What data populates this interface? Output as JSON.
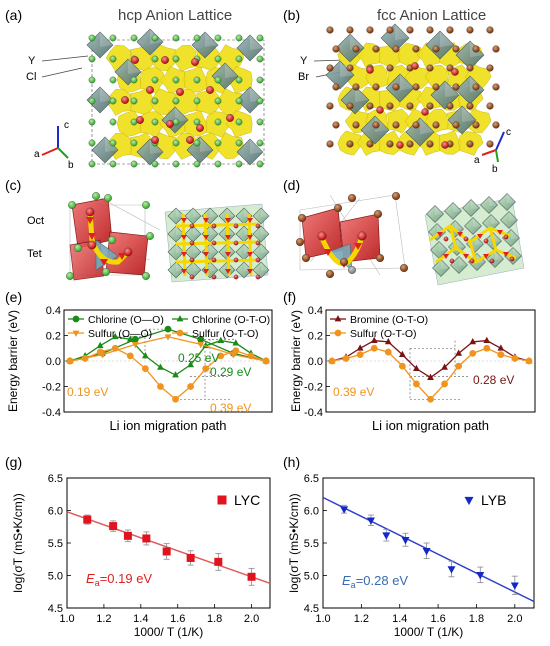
{
  "panels": {
    "a": {
      "label": "(a)",
      "title": "hcp Anion Lattice",
      "species": [
        "Y",
        "Cl"
      ],
      "axes": [
        "c",
        "a",
        "b"
      ]
    },
    "b": {
      "label": "(b)",
      "title": "fcc Anion Lattice",
      "species": [
        "Y",
        "Br"
      ],
      "axes": [
        "c",
        "a",
        "b"
      ]
    },
    "c": {
      "label": "(c)",
      "sites": [
        "Oct",
        "Tet"
      ]
    },
    "d": {
      "label": "(d)"
    },
    "e": {
      "label": "(e)"
    },
    "f": {
      "label": "(f)"
    },
    "g": {
      "label": "(g)"
    },
    "h": {
      "label": "(h)"
    }
  },
  "colors": {
    "chlorine": "#1a8a1a",
    "sulfur": "#f0941e",
    "bromine": "#7a1414",
    "lyc": "#e0141e",
    "lyb": "#1428c8",
    "fit_lyc": "#e05a5a",
    "fit_lyb": "#3040c8",
    "polyhedron": "#6e8a88",
    "iso": "#f0e020",
    "octa_red": "#e03a3a"
  },
  "chart_data": [
    {
      "panel": "e",
      "type": "line",
      "xlabel": "Li ion migration path",
      "ylabel": "Energy barrier (eV)",
      "ylim": [
        -0.4,
        0.4
      ],
      "yticks": [
        "-0.4",
        "-0.2",
        "0.0",
        "0.2",
        "0.4"
      ],
      "legend": [
        "Chlorine (O—O)",
        "Chlorine  (O-T-O)",
        "Sulfur      (O—O)",
        "Sulfur      (O-T-O)"
      ],
      "annotations": [
        "0.25 eV",
        "0.29 eV",
        "0.19 eV",
        "0.39 eV"
      ],
      "series": [
        {
          "name": "Chlorine (O—O)",
          "marker": "circle",
          "color": "chlorine",
          "values": [
            0.0,
            0.06,
            0.17,
            0.25,
            0.17,
            0.06,
            0.0
          ]
        },
        {
          "name": "Chlorine  (O-T-O)",
          "marker": "triangle",
          "color": "chlorine",
          "values": [
            0.0,
            0.04,
            0.12,
            0.19,
            0.17,
            0.04,
            -0.05,
            -0.11,
            -0.03,
            0.12,
            0.16,
            0.14,
            0.06,
            0.0
          ]
        },
        {
          "name": "Sulfur      (O—O)",
          "marker": "triangle-down",
          "color": "sulfur",
          "values": [
            0.0,
            0.05,
            0.13,
            0.19,
            0.13,
            0.05,
            0.0
          ]
        },
        {
          "name": "Sulfur      (O-T-O)",
          "marker": "circle",
          "color": "sulfur",
          "values": [
            0.0,
            0.02,
            0.07,
            0.1,
            0.04,
            -0.06,
            -0.2,
            -0.3,
            -0.2,
            -0.06,
            0.04,
            0.08,
            0.04,
            0.0
          ]
        }
      ]
    },
    {
      "panel": "f",
      "type": "line",
      "xlabel": "Li ion migration path",
      "ylabel": "Energy barrier (eV)",
      "ylim": [
        -0.4,
        0.4
      ],
      "yticks": [
        "-0.4",
        "-0.2",
        "0.0",
        "0.2",
        "0.4"
      ],
      "legend": [
        "Bromine (O-T-O)",
        "Sulfur     (O-T-O)"
      ],
      "annotations": [
        "0.28 eV",
        "0.39 eV"
      ],
      "series": [
        {
          "name": "Bromine (O-T-O)",
          "marker": "triangle",
          "color": "bromine",
          "values": [
            0.0,
            0.03,
            0.1,
            0.16,
            0.15,
            0.05,
            -0.06,
            -0.13,
            -0.05,
            0.06,
            0.15,
            0.16,
            0.1,
            0.03,
            0.0
          ]
        },
        {
          "name": "Sulfur     (O-T-O)",
          "marker": "circle",
          "color": "sulfur",
          "values": [
            0.0,
            0.02,
            0.05,
            0.1,
            0.07,
            -0.04,
            -0.18,
            -0.3,
            -0.18,
            -0.04,
            0.06,
            0.1,
            0.05,
            0.02,
            0.0
          ]
        }
      ]
    },
    {
      "panel": "g",
      "type": "scatter",
      "xlabel": "1000/ T (1/K)",
      "ylabel": "log(σT (mS•K/cm))",
      "xlim": [
        1.0,
        2.1
      ],
      "ylim": [
        4.5,
        6.5
      ],
      "xticks": [
        "1.0",
        "1.2",
        "1.4",
        "1.6",
        "1.8",
        "2.0"
      ],
      "yticks": [
        "4.5",
        "5.0",
        "5.5",
        "6.0",
        "6.5"
      ],
      "legend": [
        "LYC"
      ],
      "annotation": "=0.19 eV",
      "annotation_symbol": "E",
      "annotation_sub": "a",
      "fit": {
        "x": [
          1.0,
          2.1
        ],
        "y": [
          5.98,
          4.88
        ]
      },
      "series": [
        {
          "name": "LYC",
          "marker": "square",
          "color": "lyc",
          "x": [
            1.11,
            1.25,
            1.33,
            1.43,
            1.54,
            1.67,
            1.82,
            2.0
          ],
          "y": [
            5.86,
            5.76,
            5.61,
            5.57,
            5.37,
            5.27,
            5.21,
            4.98
          ],
          "err": [
            0.07,
            0.08,
            0.09,
            0.1,
            0.12,
            0.11,
            0.13,
            0.13
          ]
        }
      ]
    },
    {
      "panel": "h",
      "type": "scatter",
      "xlabel": "1000/ T (1/K)",
      "ylabel": "log(σT (mS•K/cm))",
      "xlim": [
        1.0,
        2.1
      ],
      "ylim": [
        4.5,
        6.5
      ],
      "xticks": [
        "1.0",
        "1.2",
        "1.4",
        "1.6",
        "1.8",
        "2.0"
      ],
      "yticks": [
        "4.5",
        "5.0",
        "5.5",
        "6.0",
        "6.5"
      ],
      "legend": [
        "LYB"
      ],
      "annotation": "=0.28 eV",
      "annotation_symbol": "E",
      "annotation_sub": "a",
      "fit": {
        "x": [
          1.0,
          2.1
        ],
        "y": [
          6.2,
          4.6
        ]
      },
      "series": [
        {
          "name": "LYB",
          "marker": "triangle-down",
          "color": "lyb",
          "x": [
            1.11,
            1.25,
            1.33,
            1.43,
            1.54,
            1.67,
            1.82,
            2.0
          ],
          "y": [
            6.02,
            5.85,
            5.62,
            5.55,
            5.38,
            5.1,
            5.01,
            4.85
          ],
          "err": [
            0.06,
            0.08,
            0.09,
            0.1,
            0.12,
            0.12,
            0.12,
            0.14
          ]
        }
      ]
    }
  ]
}
